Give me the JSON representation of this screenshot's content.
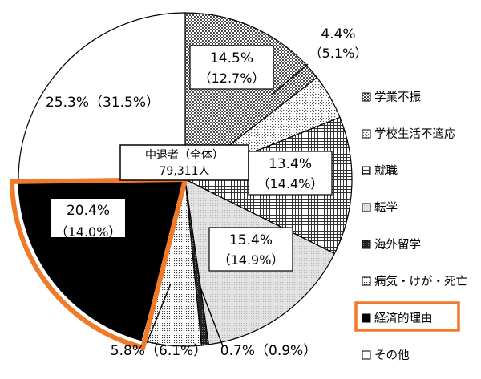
{
  "chart_data": {
    "type": "pie",
    "title": "",
    "center_label": {
      "line1": "中退者（全体）",
      "line2": "79,311人"
    },
    "slices": [
      {
        "id": "gakugyo",
        "name": "学業不振",
        "value": 14.5,
        "value_label": "14.5%",
        "prev_label": "（12.7%）",
        "pattern": "dense-check"
      },
      {
        "id": "gakko",
        "name": "学校生活不適応",
        "value": 4.4,
        "value_label": "4.4%",
        "prev_label": "（5.1%）",
        "pattern": "dots"
      },
      {
        "id": "shushoku",
        "name": "就職",
        "value": 13.4,
        "value_label": "13.4%",
        "prev_label": "（14.4%）",
        "pattern": "grid"
      },
      {
        "id": "tengaku",
        "name": "転学",
        "value": 15.4,
        "value_label": "15.4%",
        "prev_label": "（14.9%）",
        "pattern": "light-gray"
      },
      {
        "id": "kaigai",
        "name": "海外留学",
        "value": 0.7,
        "value_label": "0.7%",
        "prev_label": "（0.9%）",
        "pattern": "dark-check"
      },
      {
        "id": "byoki",
        "name": "病気・けが・死亡",
        "value": 5.8,
        "value_label": "5.8%",
        "prev_label": "（6.1%）",
        "pattern": "fine-dots"
      },
      {
        "id": "keizai",
        "name": "経済的理由",
        "value": 20.4,
        "value_label": "20.4%",
        "prev_label": "（14.0%）",
        "pattern": "black",
        "highlighted": true
      },
      {
        "id": "sonota",
        "name": "その他",
        "value": 25.3,
        "value_label": "25.3%",
        "prev_label": "（31.5%）",
        "pattern": "white"
      }
    ],
    "legend_position": "right",
    "colors": {
      "highlight": "#f0792a",
      "stroke": "#000000",
      "light_fill": "#e6e6e6"
    }
  }
}
